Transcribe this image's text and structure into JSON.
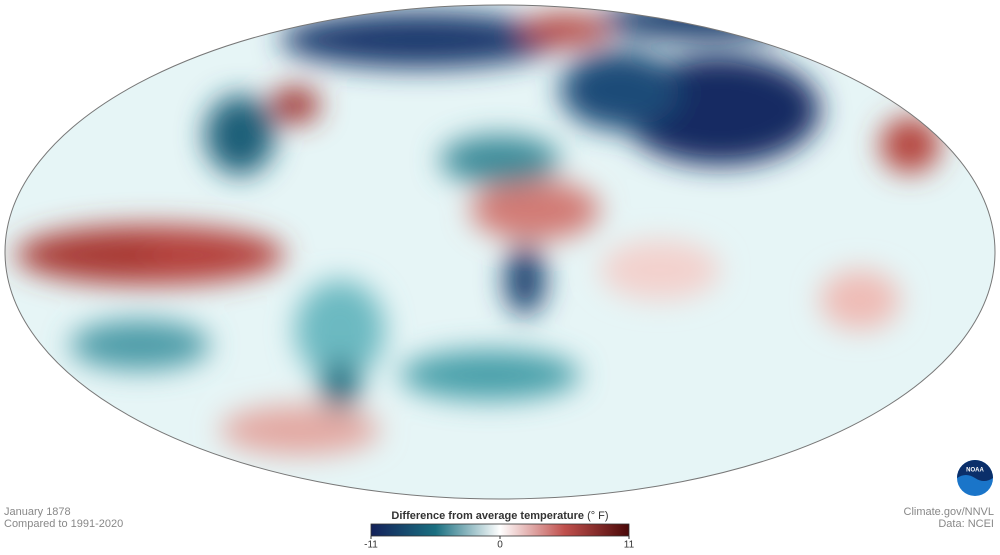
{
  "caption": {
    "date": "January 1878",
    "baseline": "Compared to 1991-2020"
  },
  "credit": {
    "source": "Climate.gov/NNVL",
    "data": "Data: NCEI"
  },
  "logo": "NOAA",
  "colorbar": {
    "title": "Difference from average temperature",
    "unit": "(° F)",
    "lim": [
      -11,
      11
    ],
    "ticks": [
      -11,
      0,
      11
    ],
    "colors": [
      "#14215a",
      "#1a6f80",
      "#ffffff",
      "#c0504d",
      "#4a0808"
    ]
  }
}
